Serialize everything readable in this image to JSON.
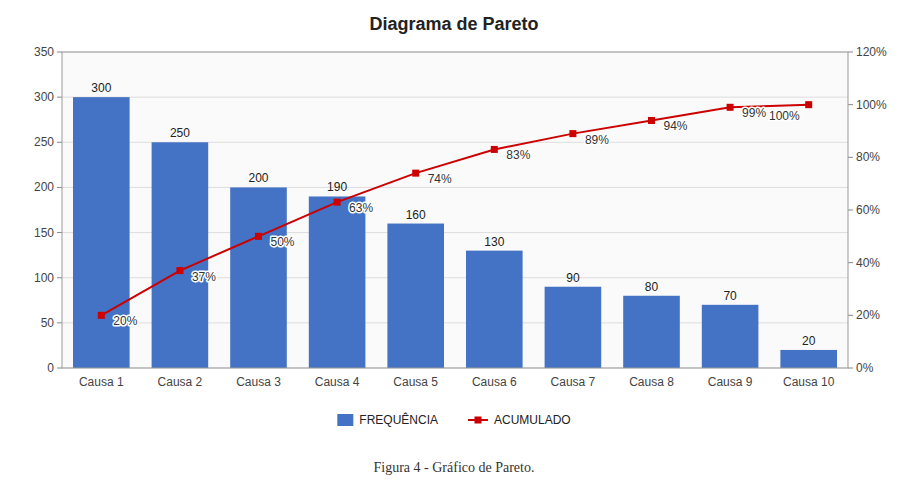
{
  "chart_data": {
    "type": "bar",
    "title": "Diagrama de Pareto",
    "caption": "Figura 4 - Gráfico de Pareto.",
    "categories": [
      "Causa 1",
      "Causa 2",
      "Causa 3",
      "Causa 4",
      "Causa 5",
      "Causa 6",
      "Causa 7",
      "Causa 8",
      "Causa 9",
      "Causa 10"
    ],
    "series": [
      {
        "name": "FREQUÊNCIA",
        "type": "bar",
        "color": "#4472C4",
        "values": [
          300,
          250,
          200,
          190,
          160,
          130,
          90,
          80,
          70,
          20
        ],
        "data_labels": true
      },
      {
        "name": "ACUMULADO",
        "type": "line",
        "axis": "y2",
        "color": "#CC0000",
        "marker": "square",
        "values": [
          20,
          37,
          50,
          63,
          74,
          83,
          89,
          94,
          99,
          100
        ],
        "value_labels": [
          "20%",
          "37%",
          "50%",
          "63%",
          "74%",
          "83%",
          "89%",
          "94%",
          "99%",
          "100%"
        ],
        "data_labels": true
      }
    ],
    "ylim": [
      0,
      350
    ],
    "yticks": [
      0,
      50,
      100,
      150,
      200,
      250,
      300,
      350
    ],
    "y2lim": [
      0,
      120
    ],
    "y2ticks": [
      {
        "value": 0,
        "label": "0%"
      },
      {
        "value": 20,
        "label": "20%"
      },
      {
        "value": 40,
        "label": "40%"
      },
      {
        "value": 60,
        "label": "60%"
      },
      {
        "value": 80,
        "label": "80%"
      },
      {
        "value": 100,
        "label": "100%"
      },
      {
        "value": 120,
        "label": "120%"
      }
    ],
    "grid": true,
    "legend": "bottom"
  }
}
